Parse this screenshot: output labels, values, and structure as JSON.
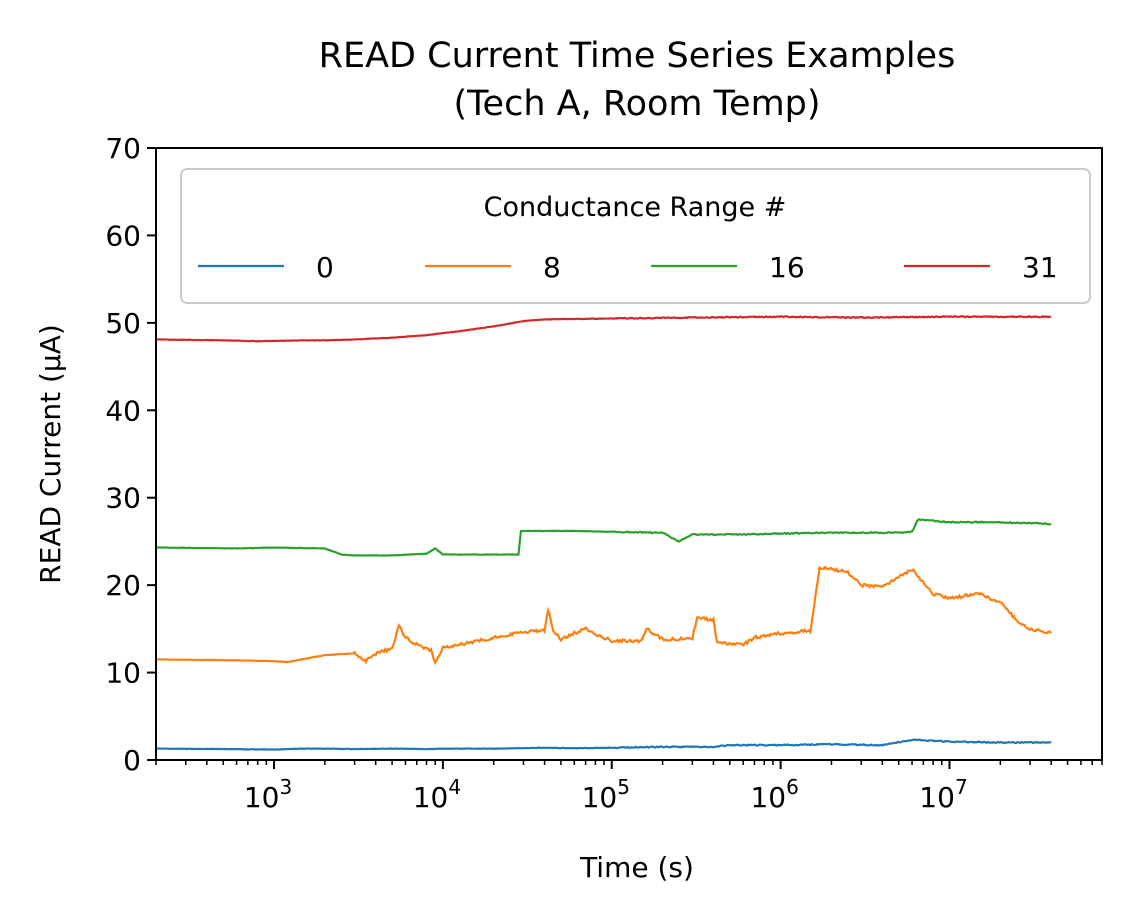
{
  "chart_data": {
    "type": "line",
    "title": "READ Current Time Series Examples",
    "subtitle": "(Tech A, Room Temp)",
    "xlabel": "Time (s)",
    "ylabel": "READ Current (μA)",
    "xscale": "log",
    "xlim": [
      200,
      80000000
    ],
    "ylim": [
      0,
      70
    ],
    "yticks": [
      "0",
      "10",
      "20",
      "30",
      "40",
      "50",
      "60",
      "70"
    ],
    "xticks": [
      {
        "base": "10",
        "exp": "3"
      },
      {
        "base": "10",
        "exp": "4"
      },
      {
        "base": "10",
        "exp": "5"
      },
      {
        "base": "10",
        "exp": "6"
      },
      {
        "base": "10",
        "exp": "7"
      }
    ],
    "grid": false,
    "legend": {
      "title": "Conductance Range #",
      "placement": "top-right",
      "columns": 4
    },
    "series": [
      {
        "name": "0",
        "color": "#1f77b4",
        "points": [
          [
            200,
            1.3
          ],
          [
            500,
            1.25
          ],
          [
            1000,
            1.2
          ],
          [
            1500,
            1.3
          ],
          [
            2000,
            1.3
          ],
          [
            3000,
            1.25
          ],
          [
            5000,
            1.3
          ],
          [
            8000,
            1.25
          ],
          [
            10000,
            1.3
          ],
          [
            20000,
            1.3
          ],
          [
            40000,
            1.4
          ],
          [
            60000,
            1.35
          ],
          [
            100000,
            1.4
          ],
          [
            200000,
            1.5
          ],
          [
            400000,
            1.5
          ],
          [
            500000,
            1.7
          ],
          [
            1000000,
            1.7
          ],
          [
            2000000,
            1.8
          ],
          [
            4000000,
            1.7
          ],
          [
            6000000,
            2.3
          ],
          [
            8000000,
            2.2
          ],
          [
            10000000,
            2.1
          ],
          [
            20000000,
            2.0
          ],
          [
            40000000,
            2.0
          ]
        ]
      },
      {
        "name": "8",
        "color": "#ff7f0e",
        "points": [
          [
            200,
            11.5
          ],
          [
            600,
            11.4
          ],
          [
            1000,
            11.3
          ],
          [
            1200,
            11.2
          ],
          [
            2000,
            12.0
          ],
          [
            3000,
            12.2
          ],
          [
            3500,
            11.3
          ],
          [
            4000,
            12.1
          ],
          [
            5000,
            12.8
          ],
          [
            5500,
            15.4
          ],
          [
            6000,
            14.0
          ],
          [
            7000,
            13.2
          ],
          [
            8500,
            12.5
          ],
          [
            9000,
            11.2
          ],
          [
            10000,
            12.8
          ],
          [
            15000,
            13.5
          ],
          [
            20000,
            14.0
          ],
          [
            30000,
            14.6
          ],
          [
            40000,
            14.8
          ],
          [
            42000,
            17.3
          ],
          [
            45000,
            14.8
          ],
          [
            50000,
            13.8
          ],
          [
            60000,
            14.5
          ],
          [
            70000,
            15.0
          ],
          [
            100000,
            13.6
          ],
          [
            150000,
            13.6
          ],
          [
            160000,
            15.0
          ],
          [
            200000,
            13.8
          ],
          [
            300000,
            13.9
          ],
          [
            320000,
            16.3
          ],
          [
            400000,
            16.0
          ],
          [
            420000,
            13.4
          ],
          [
            600000,
            13.2
          ],
          [
            700000,
            14.0
          ],
          [
            1000000,
            14.5
          ],
          [
            1500000,
            14.8
          ],
          [
            1700000,
            22.0
          ],
          [
            2500000,
            21.5
          ],
          [
            3000000,
            20.0
          ],
          [
            4000000,
            19.8
          ],
          [
            5000000,
            21.0
          ],
          [
            6000000,
            21.8
          ],
          [
            8000000,
            19.0
          ],
          [
            10000000,
            18.5
          ],
          [
            15000000,
            19.0
          ],
          [
            20000000,
            18.0
          ],
          [
            25000000,
            16.0
          ],
          [
            30000000,
            15.0
          ],
          [
            40000000,
            14.5
          ]
        ]
      },
      {
        "name": "16",
        "color": "#2ca02c",
        "points": [
          [
            200,
            24.3
          ],
          [
            600,
            24.2
          ],
          [
            1000,
            24.3
          ],
          [
            2000,
            24.2
          ],
          [
            2500,
            23.5
          ],
          [
            3000,
            23.4
          ],
          [
            5000,
            23.4
          ],
          [
            8000,
            23.6
          ],
          [
            9000,
            24.2
          ],
          [
            10000,
            23.5
          ],
          [
            20000,
            23.5
          ],
          [
            28000,
            23.5
          ],
          [
            29000,
            26.2
          ],
          [
            60000,
            26.2
          ],
          [
            100000,
            26.1
          ],
          [
            200000,
            26.0
          ],
          [
            250000,
            25.0
          ],
          [
            300000,
            25.8
          ],
          [
            600000,
            25.8
          ],
          [
            1000000,
            25.9
          ],
          [
            2000000,
            26.0
          ],
          [
            5000000,
            26.0
          ],
          [
            6000000,
            26.1
          ],
          [
            6500000,
            27.5
          ],
          [
            10000000,
            27.2
          ],
          [
            20000000,
            27.2
          ],
          [
            40000000,
            27.0
          ]
        ]
      },
      {
        "name": "31",
        "color": "#d62728",
        "points": [
          [
            200,
            48.1
          ],
          [
            500,
            48.0
          ],
          [
            800,
            47.9
          ],
          [
            1500,
            48.0
          ],
          [
            2000,
            48.0
          ],
          [
            3000,
            48.1
          ],
          [
            5000,
            48.3
          ],
          [
            8000,
            48.6
          ],
          [
            12000,
            49.0
          ],
          [
            20000,
            49.6
          ],
          [
            30000,
            50.2
          ],
          [
            40000,
            50.4
          ],
          [
            100000,
            50.5
          ],
          [
            300000,
            50.6
          ],
          [
            1000000,
            50.7
          ],
          [
            3000000,
            50.6
          ],
          [
            10000000,
            50.7
          ],
          [
            40000000,
            50.7
          ]
        ]
      }
    ]
  }
}
